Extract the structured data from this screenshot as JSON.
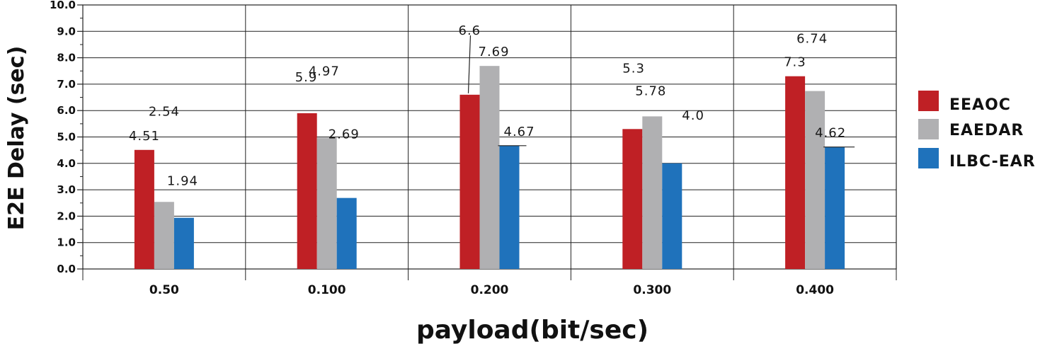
{
  "chart_data": {
    "type": "bar",
    "title": "",
    "xlabel": "payload(bit/sec)",
    "ylabel": "E2E Delay (sec)",
    "ylim": [
      0,
      10
    ],
    "y_ticks": [
      "0.0",
      "1.0",
      "2.0",
      "3.0",
      "4.0",
      "5.0",
      "6.0",
      "7.0",
      "8.0",
      "9.0",
      "10.0"
    ],
    "categories": [
      "0.50",
      "0.100",
      "0.200",
      "0.300",
      "0.400"
    ],
    "series": [
      {
        "name": "EEAOC",
        "color": "#bf2025",
        "values": [
          4.51,
          5.9,
          6.6,
          5.3,
          7.3
        ]
      },
      {
        "name": "EAEDAR",
        "color": "#b0b0b2",
        "values": [
          2.54,
          4.97,
          7.69,
          5.78,
          6.74
        ]
      },
      {
        "name": "ILBC-EAR",
        "color": "#1f72bb",
        "values": [
          1.94,
          2.69,
          4.67,
          4.0,
          4.62
        ]
      }
    ],
    "data_labels": [
      [
        "4.51",
        "2.54",
        "1.94"
      ],
      [
        "5.9",
        "4.97",
        "2.69"
      ],
      [
        "6.6",
        "7.69",
        "4.67"
      ],
      [
        "5.3",
        "5.78",
        "4.0"
      ],
      [
        "7.3",
        "6.74",
        "4.62"
      ]
    ],
    "grid": true,
    "legend_position": "right"
  }
}
